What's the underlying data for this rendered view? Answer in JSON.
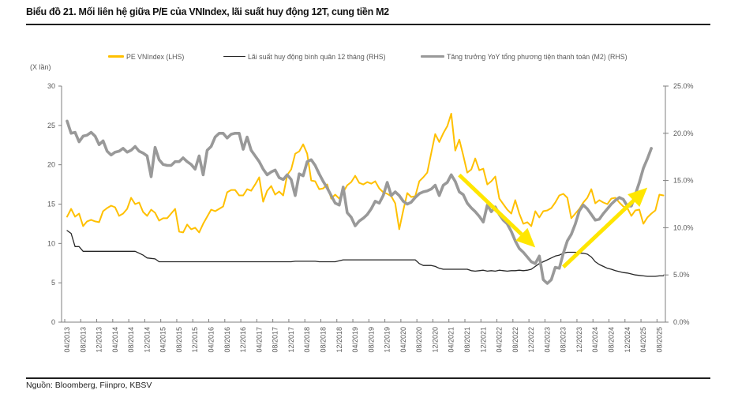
{
  "title": "Biểu đồ 21. Mối liên hệ giữa P/E của VNIndex, lãi suất huy động 12T, cung tiền M2",
  "source": "Nguồn: Bloomberg, Fiinpro, KBSV",
  "chart_data": {
    "type": "line",
    "title": "Biểu đồ 21. Mối liên hệ giữa P/E của VNIndex, lãi suất huy động 12T, cung tiền M2",
    "xlabel": "",
    "ylabel_left": "(X lần)",
    "ylabel_right": "",
    "x_start": "2013-04",
    "frequency": "monthly",
    "x_tick_step_months": 4,
    "x_ticks": [
      "04/2013",
      "08/2013",
      "12/2013",
      "04/2014",
      "08/2014",
      "12/2014",
      "04/2015",
      "08/2015",
      "12/2015",
      "04/2016",
      "08/2016",
      "12/2016",
      "04/2017",
      "08/2017",
      "12/2017",
      "04/2018",
      "08/2018",
      "12/2018",
      "04/2019",
      "08/2019",
      "12/2019",
      "04/2020",
      "08/2020",
      "12/2020",
      "04/2021",
      "08/2021",
      "12/2021",
      "04/2022",
      "08/2022",
      "12/2022",
      "04/2023",
      "08/2023",
      "12/2023",
      "04/2024",
      "08/2024",
      "12/2024",
      "04/2025",
      "08/2025"
    ],
    "y_left": {
      "min": 0,
      "max": 30,
      "tick_values": [
        0,
        5,
        10,
        15,
        20,
        25,
        30
      ],
      "tick_labels": [
        "0",
        "5",
        "10",
        "15",
        "20",
        "25",
        "30"
      ]
    },
    "y_right": {
      "min": 0,
      "max": 25,
      "tick_values": [
        0,
        5,
        10,
        15,
        20,
        25
      ],
      "tick_labels": [
        "0.0%",
        "5.0%",
        "10.0%",
        "15.0%",
        "20.0%",
        "25.0%"
      ]
    },
    "grid": false,
    "legend_position": "top",
    "legend": [
      {
        "label": "PE VNIndex (LHS)",
        "color": "#FFC000"
      },
      {
        "label": "Lãi suất huy động bình quân 12 tháng (RHS)",
        "color": "#262626"
      },
      {
        "label": "Tăng trưởng YoY tổng phương tiện thanh toán (M2) (RHS)",
        "color": "#999999"
      }
    ],
    "series": [
      {
        "name": "PE VNIndex (LHS)",
        "axis": "left",
        "unit": "x",
        "color": "#FFC000",
        "values": [
          13.4,
          14.4,
          13.4,
          13.8,
          12.2,
          12.8,
          13.0,
          12.8,
          12.7,
          14.1,
          14.5,
          14.8,
          14.6,
          13.5,
          13.8,
          14.4,
          15.8,
          15.0,
          15.2,
          14.0,
          13.5,
          14.3,
          13.9,
          12.9,
          13.2,
          13.2,
          13.8,
          14.4,
          11.5,
          11.4,
          12.4,
          11.8,
          12.0,
          11.4,
          12.5,
          13.4,
          14.3,
          14.1,
          14.4,
          14.7,
          16.5,
          16.8,
          16.8,
          16.1,
          16.1,
          16.9,
          16.7,
          17.5,
          18.4,
          15.3,
          16.7,
          17.3,
          16.2,
          16.6,
          16.1,
          18.7,
          19.4,
          21.4,
          21.7,
          22.6,
          21.4,
          18.0,
          17.9,
          16.9,
          17.0,
          17.5,
          15.7,
          16.2,
          15.7,
          16.5,
          17.4,
          17.8,
          18.6,
          17.7,
          17.5,
          17.8,
          17.6,
          17.9,
          17.0,
          16.5,
          16.3,
          16.0,
          15.1,
          11.8,
          14.2,
          16.4,
          15.9,
          16.0,
          17.9,
          18.4,
          19.0,
          21.5,
          23.9,
          22.9,
          24.0,
          24.9,
          26.5,
          21.8,
          23.2,
          21.2,
          19.0,
          19.4,
          20.8,
          19.3,
          19.5,
          17.5,
          17.9,
          18.5,
          15.7,
          15.0,
          14.3,
          13.8,
          15.5,
          13.8,
          12.5,
          12.7,
          12.2,
          14.1,
          13.3,
          14.1,
          14.2,
          14.5,
          15.2,
          16.1,
          16.3,
          15.8,
          13.2,
          13.8,
          14.4,
          15.2,
          15.8,
          16.9,
          15.1,
          15.5,
          15.2,
          15.0,
          15.7,
          15.8,
          15.2,
          14.7,
          14.5,
          13.5,
          14.2,
          14.3,
          12.5,
          13.3,
          13.8,
          14.2,
          16.2,
          16.1
        ]
      },
      {
        "name": "Lãi suất huy động bình quân 12 tháng (RHS)",
        "axis": "right",
        "unit": "%",
        "color": "#262626",
        "values": [
          9.7,
          9.4,
          8.0,
          8.0,
          7.5,
          7.5,
          7.5,
          7.5,
          7.5,
          7.5,
          7.5,
          7.5,
          7.5,
          7.5,
          7.5,
          7.5,
          7.5,
          7.5,
          7.3,
          7.1,
          6.8,
          6.75,
          6.7,
          6.4,
          6.4,
          6.4,
          6.4,
          6.4,
          6.4,
          6.4,
          6.4,
          6.4,
          6.4,
          6.4,
          6.4,
          6.4,
          6.4,
          6.4,
          6.4,
          6.4,
          6.4,
          6.4,
          6.4,
          6.4,
          6.4,
          6.4,
          6.4,
          6.4,
          6.4,
          6.4,
          6.4,
          6.4,
          6.4,
          6.4,
          6.4,
          6.4,
          6.4,
          6.45,
          6.45,
          6.45,
          6.45,
          6.45,
          6.45,
          6.4,
          6.4,
          6.4,
          6.4,
          6.4,
          6.5,
          6.6,
          6.6,
          6.6,
          6.6,
          6.6,
          6.6,
          6.6,
          6.6,
          6.6,
          6.6,
          6.6,
          6.6,
          6.6,
          6.6,
          6.6,
          6.6,
          6.6,
          6.6,
          6.6,
          6.2,
          6.0,
          6.0,
          6.0,
          5.9,
          5.7,
          5.6,
          5.6,
          5.6,
          5.6,
          5.6,
          5.6,
          5.6,
          5.45,
          5.4,
          5.45,
          5.5,
          5.4,
          5.45,
          5.4,
          5.5,
          5.45,
          5.4,
          5.45,
          5.45,
          5.5,
          5.45,
          5.5,
          5.6,
          5.9,
          6.2,
          6.4,
          6.6,
          6.8,
          7.0,
          7.1,
          7.3,
          7.4,
          7.4,
          7.4,
          7.3,
          7.3,
          7.2,
          6.9,
          6.4,
          6.1,
          5.9,
          5.7,
          5.6,
          5.45,
          5.35,
          5.25,
          5.2,
          5.1,
          5.0,
          4.95,
          4.9,
          4.85,
          4.85,
          4.85,
          4.9,
          4.9
        ]
      },
      {
        "name": "Tăng trưởng YoY tổng phương tiện thanh toán (M2) (RHS)",
        "axis": "right",
        "unit": "%",
        "color": "#999999",
        "values": [
          21.3,
          20.0,
          20.1,
          19.1,
          19.7,
          19.8,
          20.1,
          19.7,
          18.8,
          19.2,
          18.1,
          17.7,
          18.0,
          18.1,
          18.4,
          18.0,
          18.2,
          18.6,
          18.1,
          17.9,
          17.6,
          15.4,
          18.5,
          17.2,
          16.7,
          16.6,
          16.6,
          17.0,
          17.0,
          17.4,
          17.0,
          16.7,
          16.2,
          17.6,
          15.6,
          18.2,
          18.6,
          19.6,
          20.0,
          20.0,
          19.5,
          19.9,
          20.0,
          20.0,
          18.3,
          19.6,
          18.2,
          17.6,
          17.0,
          16.2,
          15.6,
          15.9,
          16.1,
          15.3,
          15.1,
          15.6,
          15.1,
          13.4,
          15.7,
          15.5,
          17.0,
          17.2,
          16.6,
          15.7,
          14.9,
          14.2,
          13.4,
          12.6,
          12.4,
          14.3,
          11.6,
          11.1,
          10.2,
          10.7,
          11.0,
          11.4,
          12.0,
          12.8,
          12.6,
          13.4,
          14.8,
          13.4,
          13.8,
          13.4,
          12.8,
          12.5,
          12.7,
          13.2,
          13.6,
          13.8,
          13.9,
          14.1,
          14.5,
          13.4,
          14.5,
          14.8,
          15.6,
          14.9,
          13.8,
          13.5,
          12.6,
          12.1,
          11.7,
          11.2,
          10.6,
          12.4,
          11.7,
          12.2,
          11.4,
          10.8,
          10.4,
          9.6,
          8.6,
          7.8,
          7.4,
          6.9,
          6.4,
          6.2,
          7.0,
          4.5,
          4.1,
          4.5,
          5.8,
          5.7,
          7.3,
          8.6,
          9.3,
          10.4,
          11.8,
          12.4,
          12.0,
          11.4,
          10.8,
          10.9,
          11.5,
          12.0,
          12.5,
          12.9,
          13.2,
          13.0,
          12.3,
          12.3,
          13.5,
          14.8,
          16.3,
          17.3,
          18.4
        ]
      }
    ],
    "annotations": [
      {
        "type": "arrow",
        "color": "#FFE600",
        "axis": "left",
        "from": {
          "date": "2021-06",
          "value": 18.7
        },
        "to": {
          "date": "2023-01",
          "value": 9.5
        }
      },
      {
        "type": "arrow",
        "color": "#FFE600",
        "axis": "left",
        "from": {
          "date": "2023-08",
          "value": 7.0
        },
        "to": {
          "date": "2025-05",
          "value": 17.1
        }
      }
    ]
  }
}
